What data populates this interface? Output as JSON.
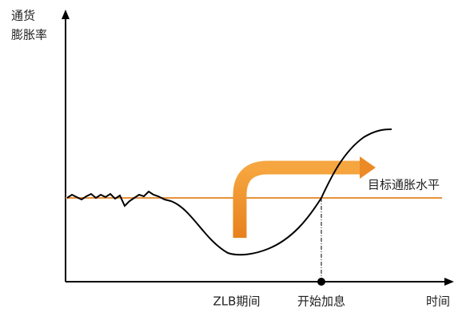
{
  "y_axis_label": [
    "通货",
    "膨胀率"
  ],
  "target_label": "目标通胀水平",
  "zlb_label": "ZLB期间",
  "hike_label": "开始加息",
  "x_axis_label": "时间"
}
